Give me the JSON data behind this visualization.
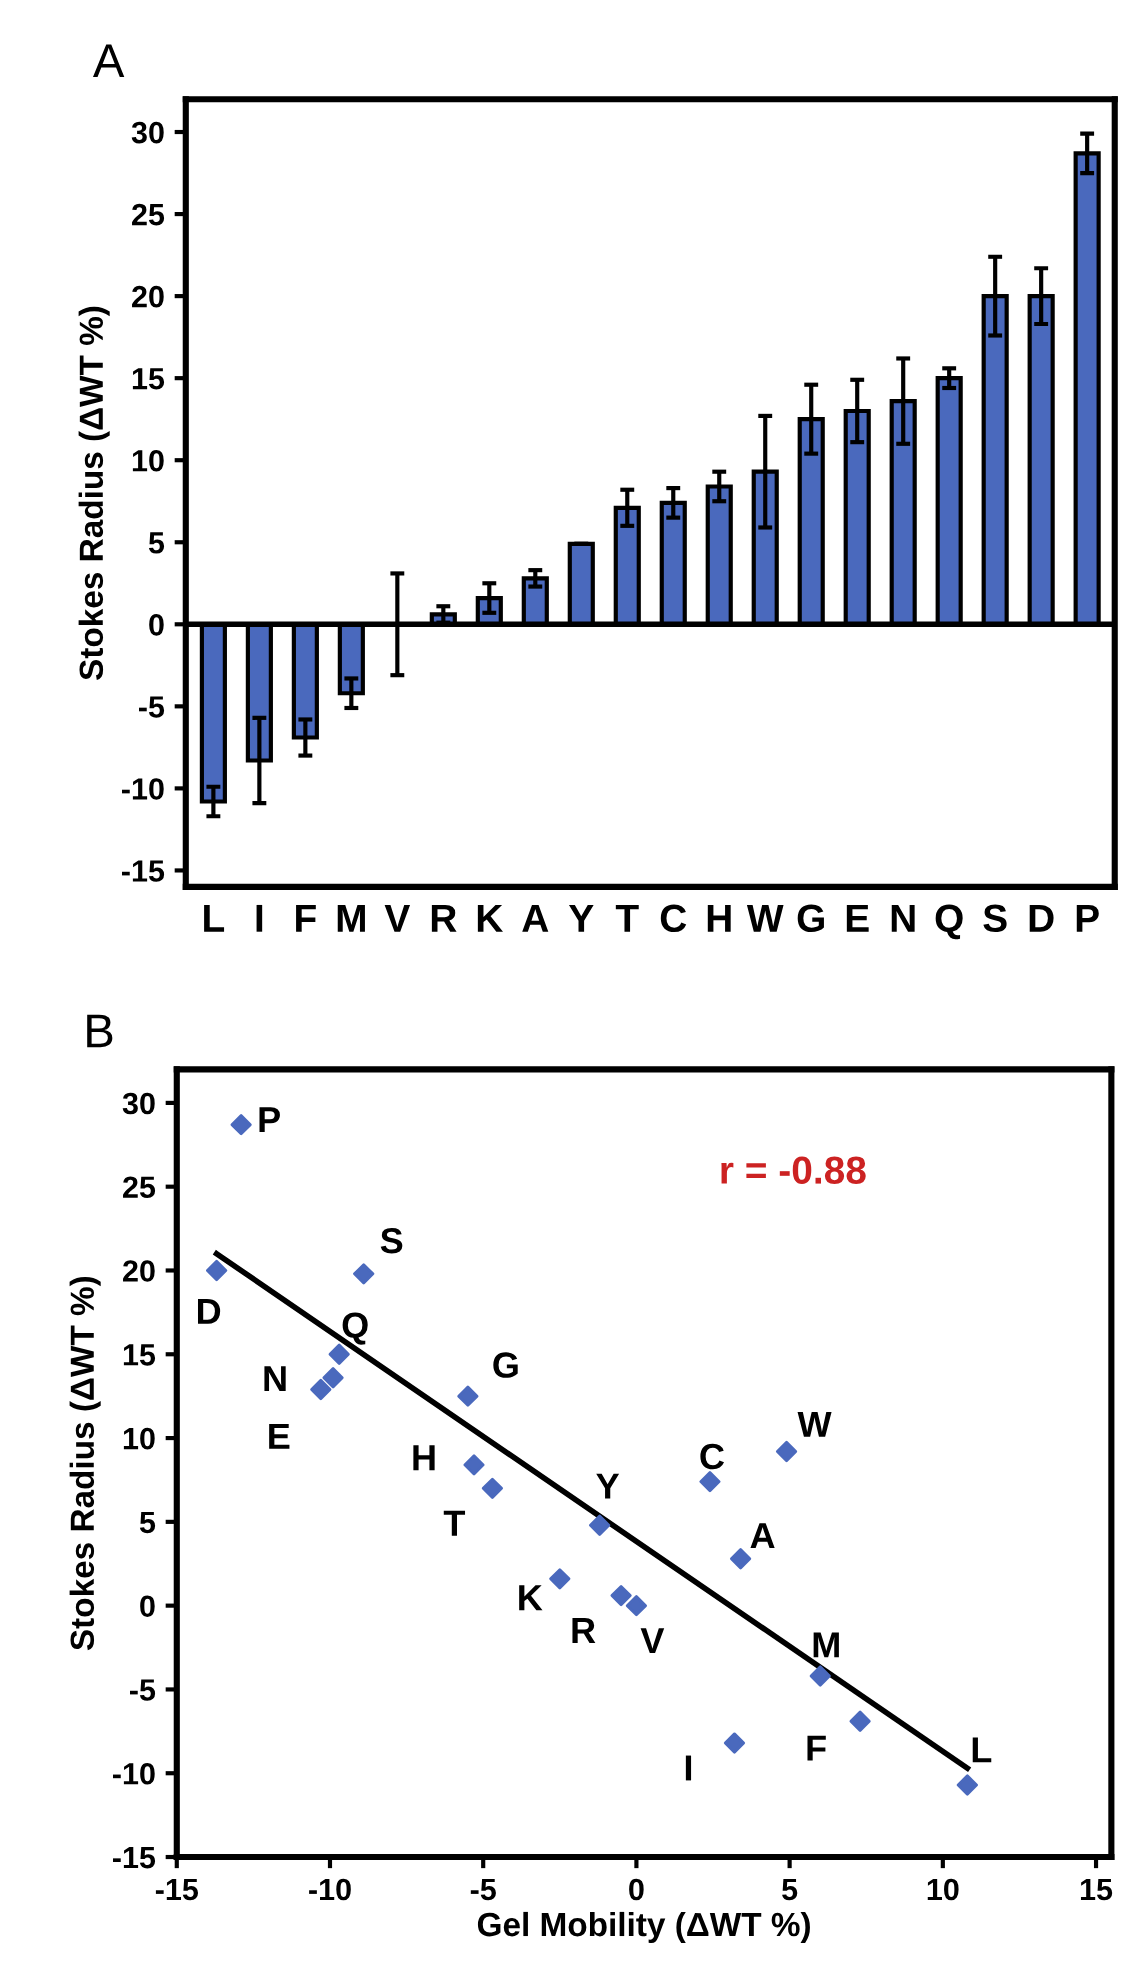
{
  "chart_data": [
    {
      "type": "bar",
      "title": "A",
      "ylabel": "Stokes Radius (ΔWT %)",
      "categories": [
        "L",
        "I",
        "F",
        "M",
        "V",
        "R",
        "K",
        "A",
        "Y",
        "T",
        "C",
        "H",
        "W",
        "G",
        "E",
        "N",
        "Q",
        "S",
        "D",
        "P"
      ],
      "series": [
        {
          "color": "#4a69bd",
          "values": [
            -10.8,
            -8.3,
            -6.9,
            -4.2,
            0,
            0.6,
            1.6,
            2.8,
            4.9,
            7.1,
            7.4,
            8.4,
            9.3,
            12.5,
            13.0,
            13.6,
            15.0,
            20.0,
            20.0,
            28.7
          ],
          "errors": [
            0.9,
            2.6,
            1.1,
            0.9,
            3.1,
            0.5,
            0.9,
            0.5,
            0,
            1.1,
            0.9,
            0.9,
            3.4,
            2.1,
            1.9,
            2.6,
            0.6,
            2.4,
            1.7,
            1.2
          ]
        }
      ],
      "ref_lines": [
        {
          "axis": "y",
          "value": 0,
          "color": "#000000"
        }
      ],
      "ylim": [
        -16,
        32
      ],
      "yticks": [
        -15,
        -10,
        -5,
        0,
        5,
        10,
        15,
        20,
        25,
        30
      ],
      "grid": false,
      "legend": false
    },
    {
      "type": "scatter",
      "title": "B",
      "xlabel": "Gel Mobility (ΔWT %)",
      "ylabel": "Stokes Radius (ΔWT %)",
      "series": [
        {
          "type": "scatter",
          "color": "#4a69bd",
          "marker": "diamond",
          "x": [
            -12.9,
            -13.7,
            -8.9,
            -9.7,
            -9.9,
            -10.3,
            -5.5,
            -5.3,
            -4.7,
            -1.2,
            -2.5,
            -0.5,
            0,
            2.4,
            4.9,
            3.4,
            6.0,
            7.3,
            3.2,
            10.8
          ],
          "values": [
            28.7,
            20.0,
            19.8,
            15.0,
            13.6,
            12.9,
            12.5,
            8.4,
            7.0,
            4.8,
            1.6,
            0.6,
            0,
            7.4,
            9.2,
            2.8,
            -4.2,
            -6.9,
            -8.2,
            -10.7
          ],
          "value_labels": [
            "P",
            "D",
            "S",
            "Q",
            "N",
            "E",
            "G",
            "H",
            "T",
            "Y",
            "K",
            "R",
            "V",
            "C",
            "W",
            "A",
            "M",
            "F",
            "I",
            "L"
          ]
        },
        {
          "type": "line",
          "color": "#000000",
          "marker": "none",
          "line_style": "solid",
          "x": [
            -13.7,
            10.8
          ],
          "values": [
            21.0,
            -9.7
          ]
        }
      ],
      "annotations": [
        "r = -0.88"
      ],
      "xlim": [
        -15,
        15.5
      ],
      "xticks": [
        -15,
        -10,
        -5,
        0,
        5,
        10,
        15
      ],
      "ylim": [
        -15,
        32
      ],
      "yticks": [
        -15,
        -10,
        -5,
        0,
        5,
        10,
        15,
        20,
        25,
        30
      ],
      "grid": false,
      "legend": false
    }
  ]
}
